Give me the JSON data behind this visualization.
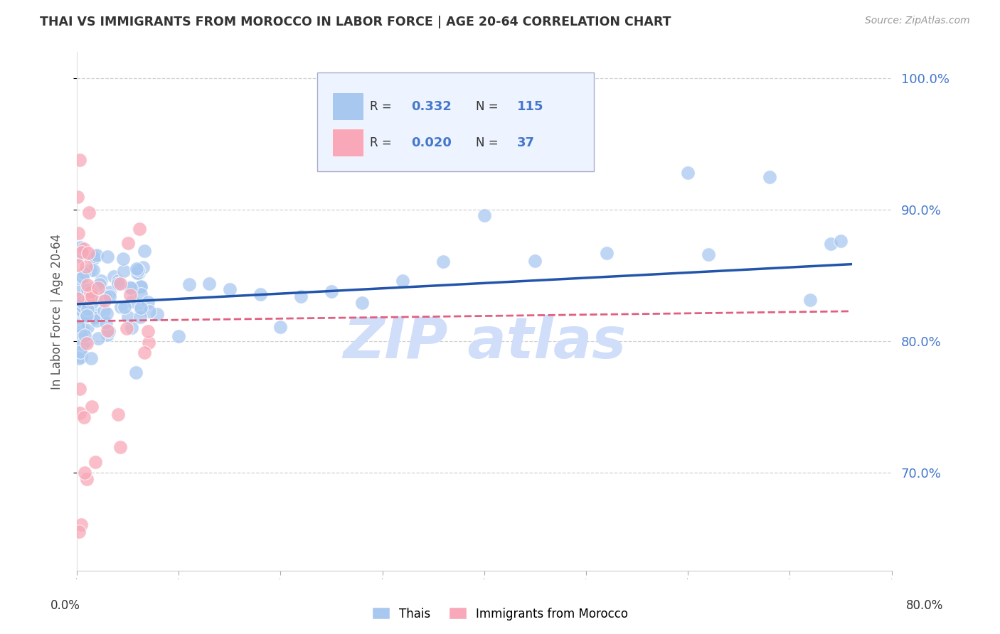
{
  "title": "THAI VS IMMIGRANTS FROM MOROCCO IN LABOR FORCE | AGE 20-64 CORRELATION CHART",
  "source": "Source: ZipAtlas.com",
  "ylabel": "In Labor Force | Age 20-64",
  "right_yticks": [
    0.7,
    0.8,
    0.9,
    1.0
  ],
  "xlim": [
    0.0,
    0.8
  ],
  "ylim": [
    0.625,
    1.02
  ],
  "thai_R": 0.332,
  "thai_N": 115,
  "morocco_R": 0.02,
  "morocco_N": 37,
  "title_color": "#333333",
  "source_color": "#999999",
  "blue_color": "#A8C8F0",
  "blue_line_color": "#2255AA",
  "pink_color": "#F8A8B8",
  "pink_line_color": "#E06080",
  "right_axis_color": "#4477CC",
  "watermark_color": "#D0DEFA",
  "grid_color": "#CCCCCC",
  "legend_box_color": "#EEF4FF",
  "legend_border_color": "#AAAACC"
}
